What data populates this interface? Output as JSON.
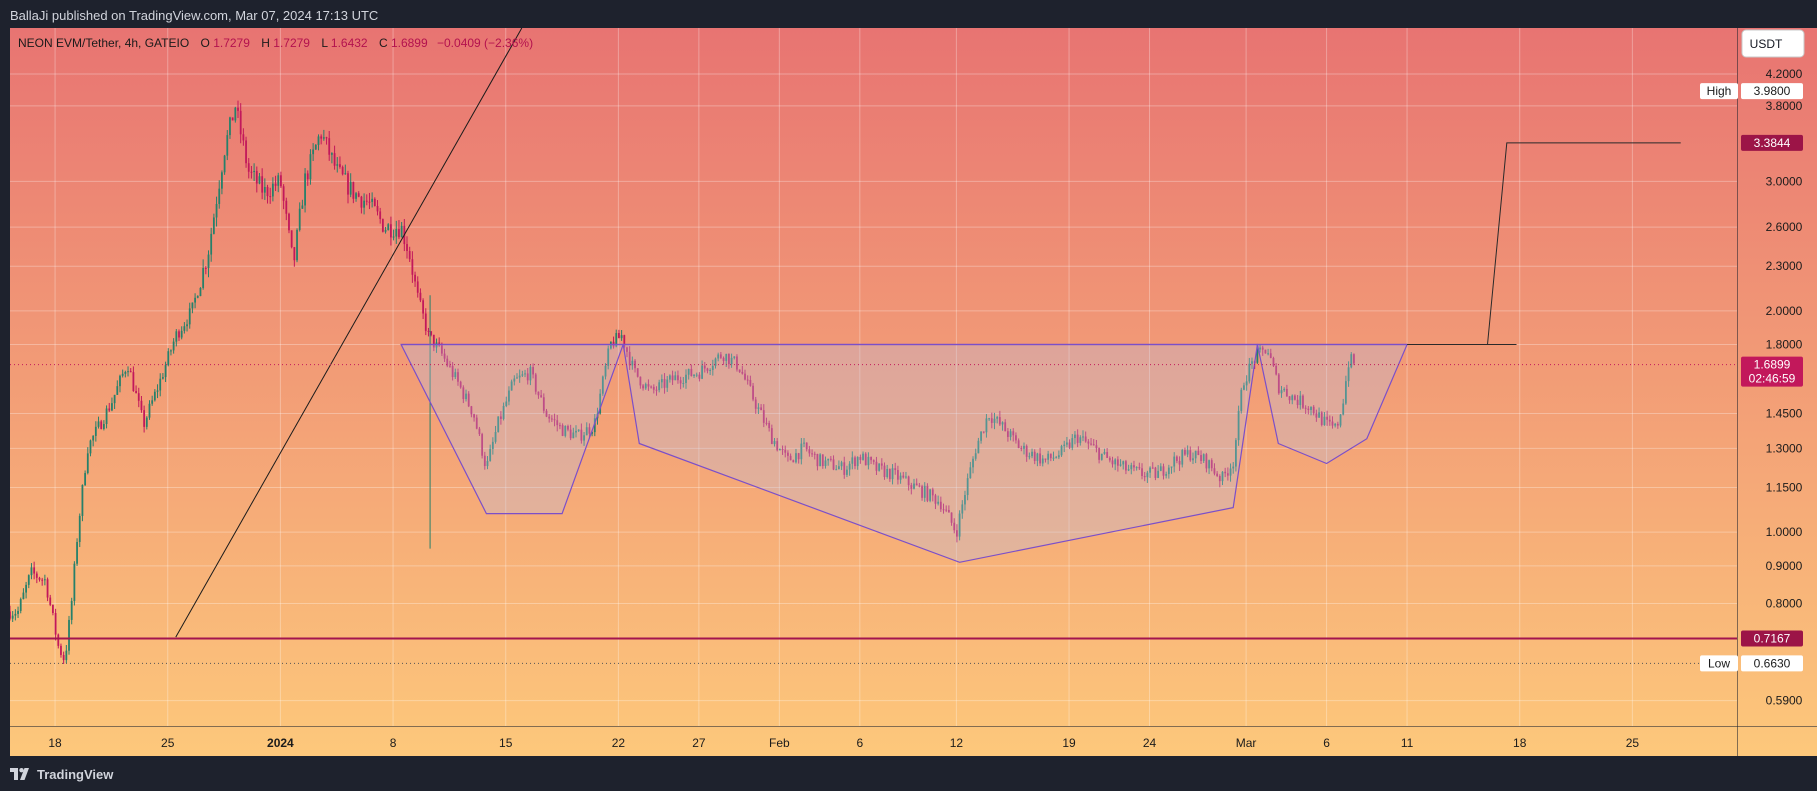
{
  "header": {
    "published": "BallaJi published on TradingView.com, Mar 07, 2024 17:13 UTC"
  },
  "legend": {
    "symbol": "NEON EVM/Tether, 4h, GATEIO",
    "o_label": "O",
    "o_value": "1.7279",
    "h_label": "H",
    "h_value": "1.7279",
    "l_label": "L",
    "l_value": "1.6432",
    "c_label": "C",
    "c_value": "1.6899",
    "change": "−0.0409 (−2.36%)"
  },
  "currency_button": "USDT",
  "footer": {
    "brand": "TradingView"
  },
  "colors": {
    "bg_top": "#e87472",
    "bg_bottom": "#fdc87b",
    "frame": "#1e222d",
    "up": "#26806a",
    "down": "#c2185b",
    "pattern": "#7b4fc9",
    "support": "#a3154f",
    "price_tag": "#c2185b"
  },
  "chart_data": {
    "type": "candlestick",
    "title": "NEON EVM/Tether, 4h, GATEIO",
    "scale": "log",
    "ylim": [
      0.545,
      4.85
    ],
    "y_ticks": [
      "4.2000",
      "3.8000",
      "3.0000",
      "2.6000",
      "2.3000",
      "2.0000",
      "1.8000",
      "1.4500",
      "1.3000",
      "1.1500",
      "1.0000",
      "0.9000",
      "0.8000",
      "0.5900"
    ],
    "x_ticks": [
      {
        "label": "18",
        "day": 0
      },
      {
        "label": "25",
        "day": 7
      },
      {
        "label": "2024",
        "day": 14
      },
      {
        "label": "8",
        "day": 21
      },
      {
        "label": "15",
        "day": 28
      },
      {
        "label": "22",
        "day": 35
      },
      {
        "label": "27",
        "day": 40
      },
      {
        "label": "Feb",
        "day": 45
      },
      {
        "label": "6",
        "day": 50
      },
      {
        "label": "12",
        "day": 56
      },
      {
        "label": "19",
        "day": 63
      },
      {
        "label": "24",
        "day": 68
      },
      {
        "label": "Mar",
        "day": 74
      },
      {
        "label": "6",
        "day": 79
      },
      {
        "label": "11",
        "day": 84
      },
      {
        "label": "18",
        "day": 91
      },
      {
        "label": "25",
        "day": 98
      }
    ],
    "x_range_days": [
      -2.8,
      104.5
    ],
    "price_anchors": [
      [
        -2.8,
        0.78
      ],
      [
        -2.3,
        0.78
      ],
      [
        -1.5,
        0.88
      ],
      [
        -0.6,
        0.86
      ],
      [
        0.2,
        0.7
      ],
      [
        0.6,
        0.67
      ],
      [
        1.0,
        0.79
      ],
      [
        1.4,
        1.0
      ],
      [
        2.0,
        1.3
      ],
      [
        3.5,
        1.5
      ],
      [
        4.5,
        1.7
      ],
      [
        5.5,
        1.4
      ],
      [
        6.5,
        1.6
      ],
      [
        7.5,
        1.85
      ],
      [
        8.5,
        2.0
      ],
      [
        9.5,
        2.4
      ],
      [
        10.5,
        3.3
      ],
      [
        11.2,
        3.8
      ],
      [
        12.0,
        3.1
      ],
      [
        13.0,
        2.9
      ],
      [
        14.0,
        3.0
      ],
      [
        14.8,
        2.3
      ],
      [
        15.5,
        3.0
      ],
      [
        16.5,
        3.5
      ],
      [
        17.5,
        3.1
      ],
      [
        18.5,
        2.9
      ],
      [
        19.5,
        2.8
      ],
      [
        20.5,
        2.6
      ],
      [
        21.5,
        2.6
      ],
      [
        22.0,
        2.4
      ],
      [
        22.5,
        2.1
      ],
      [
        23.2,
        1.85
      ],
      [
        24.0,
        1.75
      ],
      [
        25.0,
        1.6
      ],
      [
        26.0,
        1.45
      ],
      [
        26.8,
        1.22
      ],
      [
        27.5,
        1.4
      ],
      [
        28.5,
        1.6
      ],
      [
        29.5,
        1.65
      ],
      [
        30.5,
        1.45
      ],
      [
        31.5,
        1.38
      ],
      [
        32.5,
        1.35
      ],
      [
        33.5,
        1.4
      ],
      [
        34.5,
        1.8
      ],
      [
        35.2,
        1.85
      ],
      [
        36.0,
        1.65
      ],
      [
        37.0,
        1.55
      ],
      [
        38.5,
        1.62
      ],
      [
        40.0,
        1.65
      ],
      [
        41.5,
        1.75
      ],
      [
        42.5,
        1.68
      ],
      [
        43.5,
        1.5
      ],
      [
        44.5,
        1.35
      ],
      [
        45.5,
        1.25
      ],
      [
        46.5,
        1.3
      ],
      [
        47.5,
        1.25
      ],
      [
        49.0,
        1.22
      ],
      [
        50.0,
        1.27
      ],
      [
        51.0,
        1.22
      ],
      [
        52.0,
        1.2
      ],
      [
        53.5,
        1.15
      ],
      [
        55.0,
        1.1
      ],
      [
        56.0,
        1.0
      ],
      [
        56.6,
        1.15
      ],
      [
        57.2,
        1.3
      ],
      [
        58.0,
        1.45
      ],
      [
        59.0,
        1.38
      ],
      [
        60.0,
        1.3
      ],
      [
        61.5,
        1.25
      ],
      [
        62.5,
        1.28
      ],
      [
        63.5,
        1.35
      ],
      [
        64.5,
        1.3
      ],
      [
        65.5,
        1.25
      ],
      [
        66.5,
        1.22
      ],
      [
        67.5,
        1.2
      ],
      [
        68.5,
        1.2
      ],
      [
        69.5,
        1.25
      ],
      [
        70.5,
        1.28
      ],
      [
        71.5,
        1.25
      ],
      [
        72.5,
        1.18
      ],
      [
        73.2,
        1.25
      ],
      [
        73.8,
        1.6
      ],
      [
        74.5,
        1.72
      ],
      [
        75.3,
        1.78
      ],
      [
        76.0,
        1.58
      ],
      [
        77.0,
        1.52
      ],
      [
        78.0,
        1.48
      ],
      [
        79.0,
        1.4
      ],
      [
        79.6,
        1.38
      ],
      [
        80.0,
        1.5
      ],
      [
        80.4,
        1.72
      ],
      [
        80.8,
        1.69
      ]
    ],
    "last_candle_day": 80.8,
    "series": [
      {
        "name": "High",
        "value": 3.98,
        "label": "High",
        "value_label": "3.9800"
      },
      {
        "name": "Low",
        "value": 0.663,
        "label": "Low",
        "value_label": "0.6630"
      },
      {
        "name": "Target",
        "value": 3.3844,
        "value_label": "3.3844"
      },
      {
        "name": "Last",
        "value": 1.6899,
        "value_label": "1.6899",
        "countdown": "02:46:59"
      },
      {
        "name": "Support",
        "value": 0.7167,
        "value_label": "0.7167"
      }
    ],
    "inverse_head_shoulders": {
      "neckline": 1.8,
      "neckline_days": [
        21.5,
        84.0
      ],
      "left_shoulder": [
        [
          21.5,
          1.8
        ],
        [
          26.8,
          1.06
        ],
        [
          31.5,
          1.06
        ],
        [
          35.3,
          1.8
        ]
      ],
      "head": [
        [
          35.3,
          1.8
        ],
        [
          36.3,
          1.32
        ],
        [
          56.2,
          0.91
        ],
        [
          73.2,
          1.08
        ],
        [
          74.7,
          1.8
        ]
      ],
      "right_shoulder": [
        [
          74.7,
          1.8
        ],
        [
          76.0,
          1.32
        ],
        [
          79.0,
          1.24
        ],
        [
          81.5,
          1.34
        ],
        [
          84.0,
          1.8
        ]
      ],
      "target_path": [
        [
          84.0,
          1.8
        ],
        [
          90.8,
          1.8
        ],
        [
          89.0,
          1.8
        ],
        [
          90.2,
          3.3844
        ],
        [
          101.0,
          3.3844
        ]
      ]
    },
    "trendline": [
      [
        7.5,
        0.72
      ],
      [
        29.0,
        4.85
      ]
    ],
    "entry_wick": {
      "day": 23.3,
      "high": 2.1,
      "low": 0.95
    }
  }
}
